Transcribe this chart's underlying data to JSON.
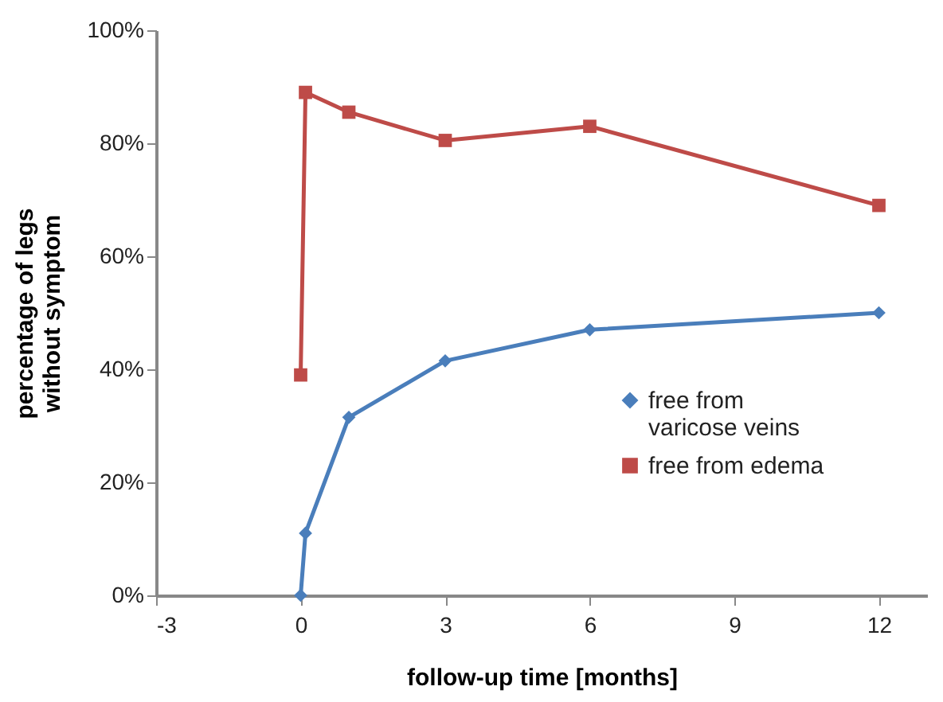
{
  "chart_data": {
    "type": "line",
    "xlabel": "follow-up time [months]",
    "ylabel": "percentage of legs\nwithout symptom",
    "x": [
      0,
      0.1,
      1,
      3,
      6,
      12
    ],
    "series": [
      {
        "name": "free from varicose veins",
        "color": "#4a7ebb",
        "marker": "diamond",
        "values": [
          0,
          11,
          31.5,
          41.5,
          47,
          50
        ]
      },
      {
        "name": "free from edema",
        "color": "#be4b48",
        "marker": "square",
        "values": [
          39,
          89,
          85.5,
          80.5,
          83,
          69
        ]
      }
    ],
    "xlim": [
      -3,
      13
    ],
    "xticks": [
      -3,
      0,
      3,
      6,
      9,
      12
    ],
    "ylim": [
      0,
      100
    ],
    "yticks": [
      {
        "value": 0,
        "label": "0%"
      },
      {
        "value": 20,
        "label": "20%"
      },
      {
        "value": 40,
        "label": "40%"
      },
      {
        "value": 60,
        "label": "60%"
      },
      {
        "value": 80,
        "label": "80%"
      },
      {
        "value": 100,
        "label": "100%"
      }
    ],
    "grid": false,
    "legend": "right",
    "line_style": "solid"
  }
}
